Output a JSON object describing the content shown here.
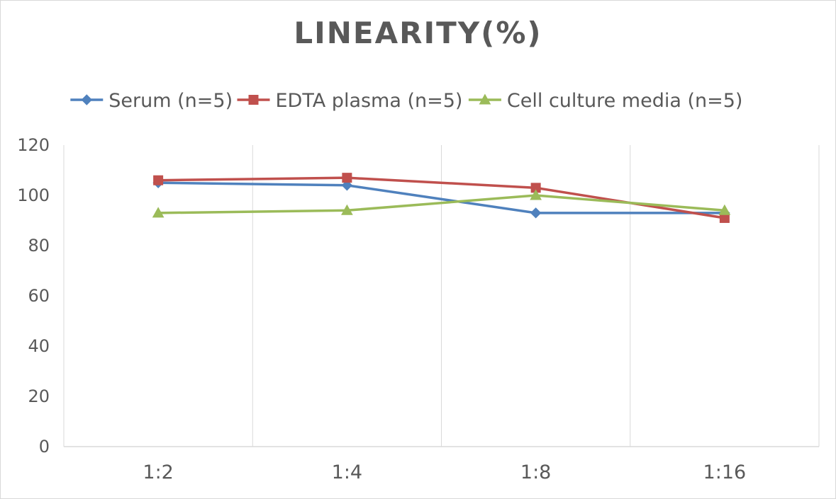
{
  "chart_data": {
    "type": "line",
    "title": "LINEARITY(%)",
    "xlabel": "",
    "ylabel": "",
    "categories": [
      "1:2",
      "1:4",
      "1:8",
      "1:16"
    ],
    "ylim": [
      0,
      120
    ],
    "yticks": [
      0,
      20,
      40,
      60,
      80,
      100,
      120
    ],
    "grid": "vertical",
    "legend_position": "top",
    "series": [
      {
        "name": "Serum (n=5)",
        "values": [
          105,
          104,
          93,
          93
        ],
        "color": "#4f81bd",
        "marker": "diamond"
      },
      {
        "name": "EDTA plasma (n=5)",
        "values": [
          106,
          107,
          103,
          91
        ],
        "color": "#c0504d",
        "marker": "square"
      },
      {
        "name": "Cell culture media (n=5)",
        "values": [
          93,
          94,
          100,
          94
        ],
        "color": "#9bbb59",
        "marker": "triangle"
      }
    ]
  },
  "colors": {
    "grid": "#d9d9d9",
    "text": "#595959",
    "border": "#d9d9d9"
  }
}
